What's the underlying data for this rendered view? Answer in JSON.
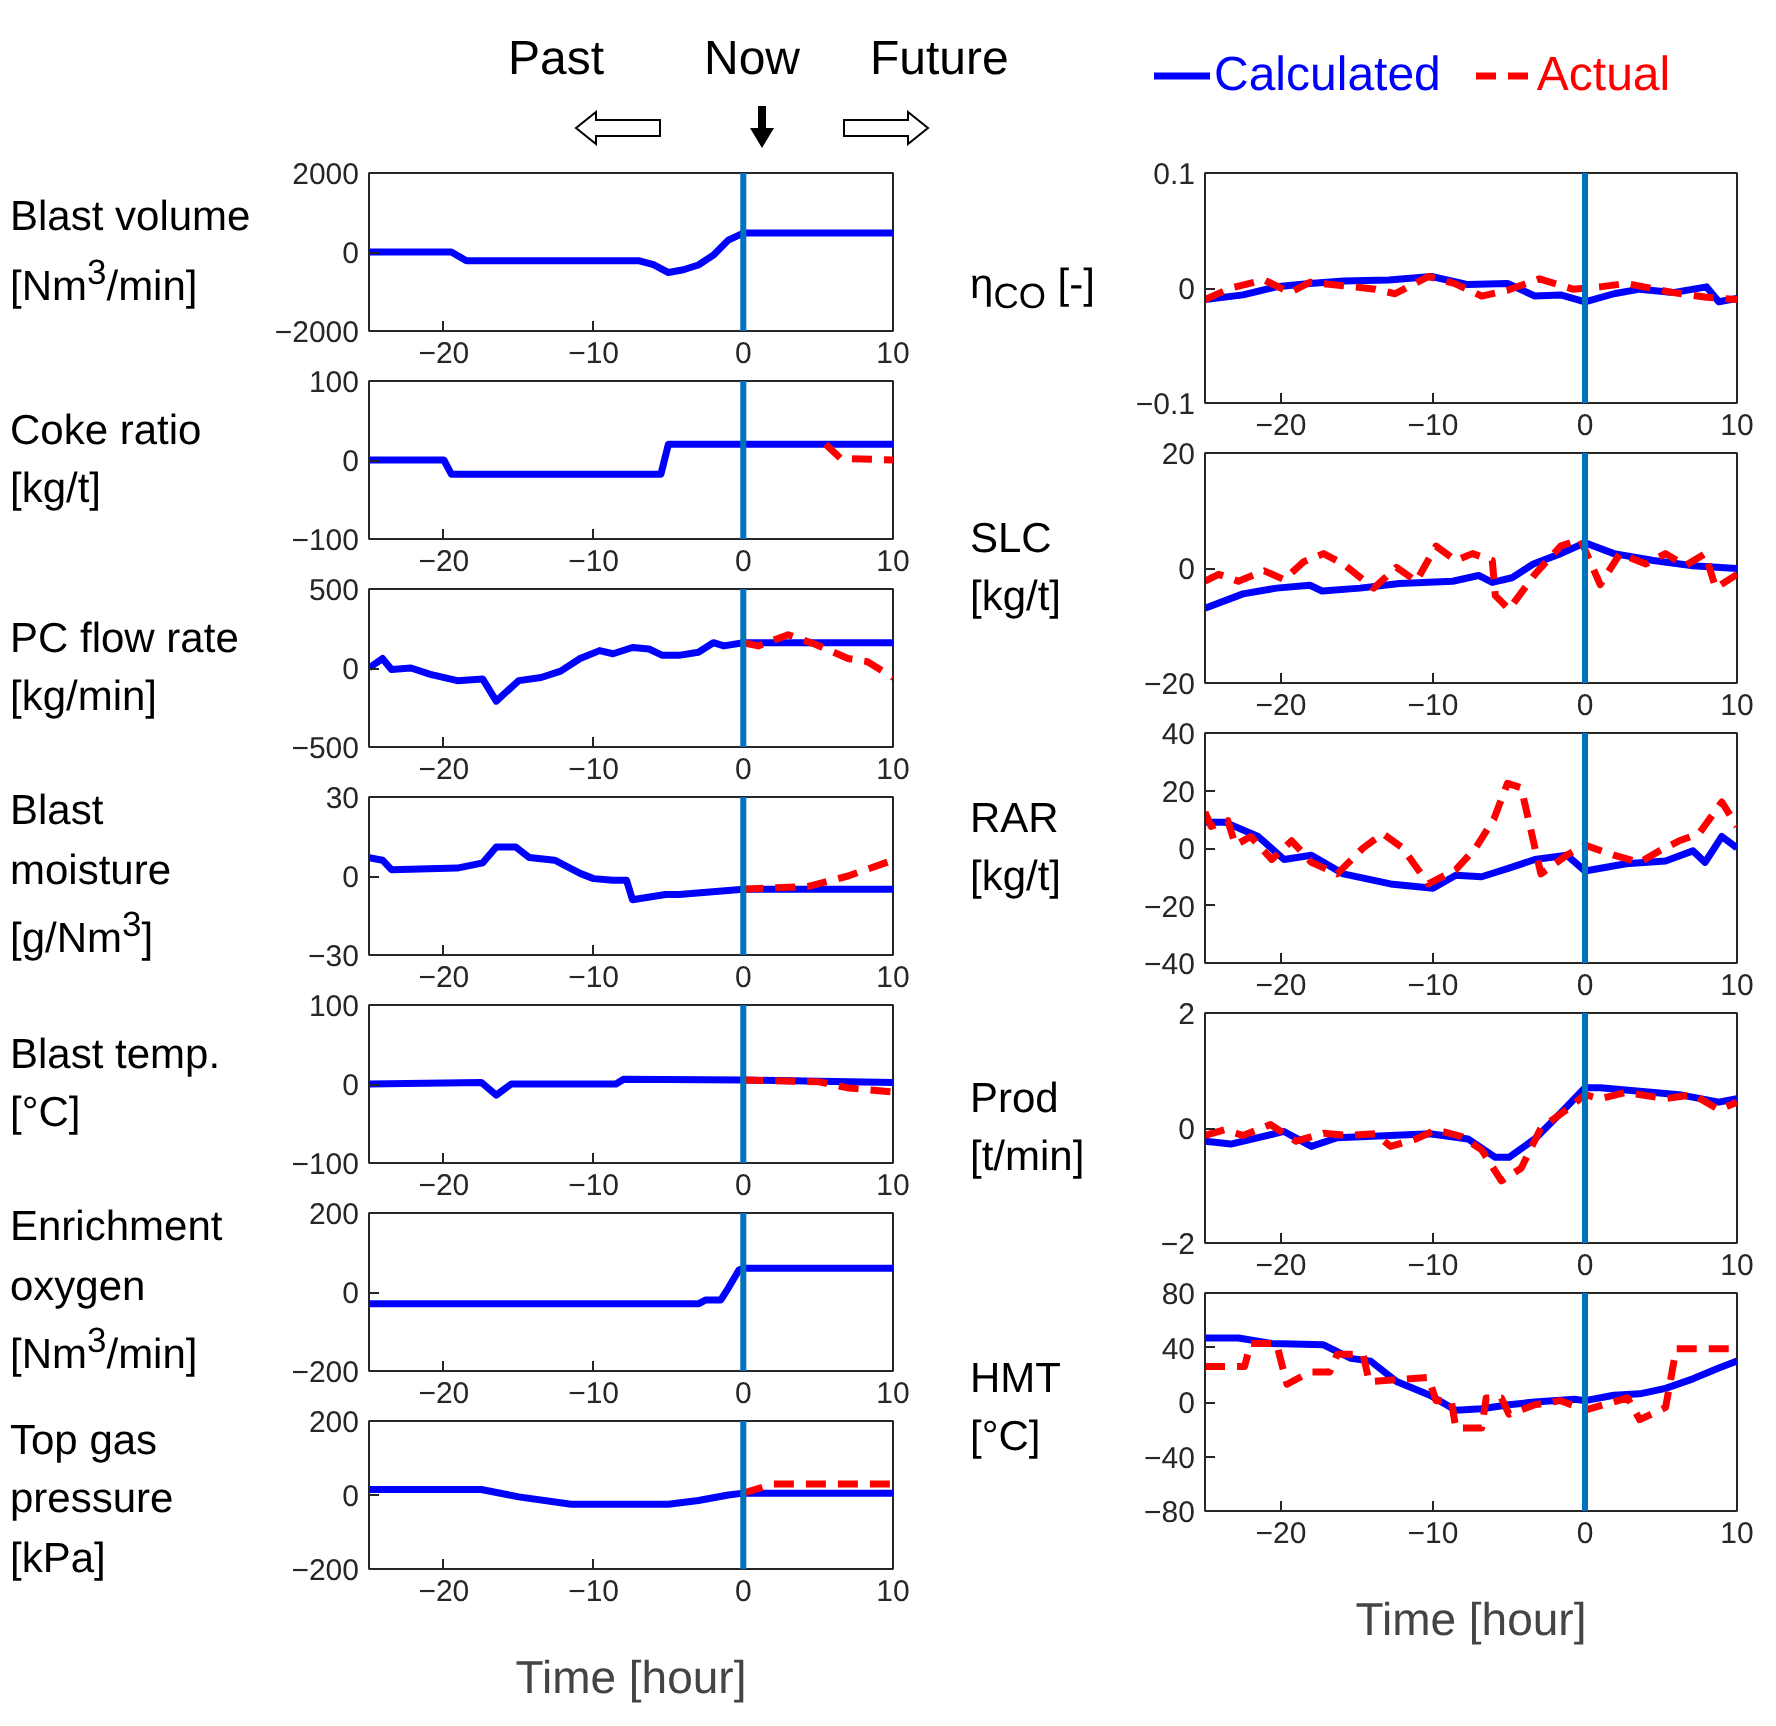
{
  "chart_data": [
    {
      "type": "line",
      "ylabel": "Blast volume [Nm$^{3}$/min]",
      "annotations": [
        "Past",
        "Now",
        "Future"
      ],
      "xlim": [
        -25,
        10
      ],
      "xticks": [
        -20,
        -10,
        0,
        10
      ],
      "ylim": [
        -2000,
        2000
      ],
      "yticks": [
        -2000,
        0,
        2000
      ],
      "ref_lines": [
        {
          "axis": "x",
          "value": 0,
          "color": "#0072bd"
        }
      ],
      "series": [
        {
          "color": "#0000ff",
          "line_style": "solid",
          "x": [
            -25,
            -19.5,
            -18.5,
            -7,
            -6,
            -5,
            -4,
            -3,
            -2,
            -1,
            0,
            10
          ],
          "values": [
            0,
            0,
            -220,
            -220,
            -320,
            -520,
            -450,
            -330,
            -80,
            300,
            480,
            480
          ]
        }
      ]
    },
    {
      "type": "line",
      "ylabel": "Coke ratio [kg/t]",
      "xlim": [
        -25,
        10
      ],
      "xticks": [
        -20,
        -10,
        0,
        10
      ],
      "ylim": [
        -100,
        100
      ],
      "yticks": [
        -100,
        0,
        100
      ],
      "ref_lines": [
        {
          "axis": "x",
          "value": 0,
          "color": "#0072bd"
        }
      ],
      "series": [
        {
          "color": "#0000ff",
          "line_style": "solid",
          "x": [
            -25,
            -20,
            -19.5,
            -5.5,
            -5,
            10
          ],
          "values": [
            0,
            0,
            -18,
            -18,
            20,
            20
          ]
        },
        {
          "color": "#ff0000",
          "line_style": "dashed",
          "x": [
            5.5,
            6.5,
            10
          ],
          "values": [
            20,
            2,
            0
          ]
        }
      ]
    },
    {
      "type": "line",
      "ylabel": "PC flow rate [kg/min]",
      "xlim": [
        -25,
        10
      ],
      "xticks": [
        -20,
        -10,
        0,
        10
      ],
      "ylim": [
        -500,
        500
      ],
      "yticks": [
        -500,
        0,
        500
      ],
      "ref_lines": [
        {
          "axis": "x",
          "value": 0,
          "color": "#0072bd"
        }
      ],
      "series": [
        {
          "color": "#0000ff",
          "line_style": "solid",
          "x": [
            -25,
            -24.1,
            -23.5,
            -22.2,
            -20.9,
            -19.1,
            -17.4,
            -16.5,
            -15,
            -13.5,
            -12.2,
            -10.9,
            -9.6,
            -8.7,
            -7.4,
            -6.3,
            -5.4,
            -4.3,
            -3,
            -2,
            -1.3,
            0,
            10
          ],
          "values": [
            0,
            60,
            -10,
            0,
            -40,
            -80,
            -70,
            -210,
            -80,
            -60,
            -20,
            60,
            110,
            90,
            130,
            120,
            80,
            80,
            100,
            160,
            140,
            160,
            160
          ]
        },
        {
          "color": "#ff0000",
          "line_style": "dashed",
          "x": [
            0,
            1,
            3,
            4.8,
            7,
            8.3,
            10
          ],
          "values": [
            160,
            140,
            210,
            150,
            60,
            40,
            -60
          ]
        }
      ]
    },
    {
      "type": "line",
      "ylabel": "Blast moisture [g/Nm$^{3}$]",
      "xlim": [
        -25,
        10
      ],
      "xticks": [
        -20,
        -10,
        0,
        10
      ],
      "ylim": [
        -30,
        30
      ],
      "yticks": [
        -30,
        0,
        30
      ],
      "ref_lines": [
        {
          "axis": "x",
          "value": 0,
          "color": "#0072bd"
        }
      ],
      "series": [
        {
          "color": "#0000ff",
          "line_style": "solid",
          "x": [
            -25,
            -24.1,
            -23.5,
            -19.1,
            -17.4,
            -16.5,
            -15.2,
            -14.3,
            -12.6,
            -10.9,
            -10,
            -8.7,
            -7.8,
            -7.4,
            -5.2,
            -4.3,
            0,
            10
          ],
          "values": [
            7,
            6,
            2.4,
            3,
            5,
            11,
            11,
            7,
            6,
            1,
            -1,
            -1.6,
            -1.6,
            -9,
            -7,
            -7,
            -5,
            -5
          ]
        },
        {
          "color": "#ff0000",
          "line_style": "dashed",
          "x": [
            0,
            4.3,
            7,
            10
          ],
          "values": [
            -5,
            -4,
            0,
            6
          ]
        }
      ]
    },
    {
      "type": "line",
      "ylabel": "Blast temp. [°C]",
      "xlim": [
        -25,
        10
      ],
      "xticks": [
        -20,
        -10,
        0,
        10
      ],
      "ylim": [
        -100,
        100
      ],
      "yticks": [
        -100,
        0,
        100
      ],
      "ref_lines": [
        {
          "axis": "x",
          "value": 0,
          "color": "#0072bd"
        }
      ],
      "series": [
        {
          "color": "#0000ff",
          "line_style": "solid",
          "x": [
            -25,
            -17.5,
            -16.5,
            -15.5,
            -8.5,
            -8,
            0,
            10
          ],
          "values": [
            0,
            2,
            -14,
            0,
            0,
            6,
            5,
            2
          ]
        },
        {
          "color": "#ff0000",
          "line_style": "dashed",
          "x": [
            0,
            5,
            7,
            10
          ],
          "values": [
            5,
            3,
            -5,
            -10
          ]
        }
      ]
    },
    {
      "type": "line",
      "ylabel": "Enrichment oxygen [Nm$^{3}$/min]",
      "xlim": [
        -25,
        10
      ],
      "xticks": [
        -20,
        -10,
        0,
        10
      ],
      "ylim": [
        -200,
        200
      ],
      "yticks": [
        -200,
        0,
        200
      ],
      "ref_lines": [
        {
          "axis": "x",
          "value": 0,
          "color": "#0072bd"
        }
      ],
      "series": [
        {
          "color": "#0000ff",
          "line_style": "solid",
          "x": [
            -25,
            -3,
            -2.5,
            -1.5,
            -1,
            -0.3,
            0,
            10
          ],
          "values": [
            -30,
            -30,
            -20,
            -20,
            10,
            55,
            60,
            60
          ]
        }
      ]
    },
    {
      "type": "line",
      "ylabel": "Top gas pressure [kPa]",
      "xlabel": "Time [hour]",
      "xlim": [
        -25,
        10
      ],
      "xticks": [
        -20,
        -10,
        0,
        10
      ],
      "ylim": [
        -200,
        200
      ],
      "yticks": [
        -200,
        0,
        200
      ],
      "ref_lines": [
        {
          "axis": "x",
          "value": 0,
          "color": "#0072bd"
        }
      ],
      "series": [
        {
          "color": "#0000ff",
          "line_style": "solid",
          "x": [
            -25,
            -17.5,
            -15,
            -11.5,
            -5,
            -3,
            -1,
            0,
            10
          ],
          "values": [
            15,
            15,
            -5,
            -25,
            -25,
            -15,
            0,
            5,
            5
          ]
        },
        {
          "color": "#ff0000",
          "line_style": "dashed",
          "x": [
            0,
            2,
            10
          ],
          "values": [
            5,
            30,
            30
          ]
        }
      ]
    },
    {
      "type": "line",
      "ylabel": "η$_{CO}$ [-]",
      "legend": "top left",
      "xlim": [
        -25,
        10
      ],
      "xticks": [
        -20,
        -10,
        0,
        10
      ],
      "ylim": [
        -0.1,
        0.1
      ],
      "yticks": [
        -0.1,
        0,
        0.1
      ],
      "ref_lines": [
        {
          "axis": "x",
          "value": 0,
          "color": "#0072bd"
        }
      ],
      "series": [
        {
          "name": "Calculated",
          "color": "#0000ff",
          "line_style": "solid",
          "x": [
            -25,
            -22.5,
            -20.3,
            -18.1,
            -15.9,
            -12.9,
            -10.1,
            -7.7,
            -5.1,
            -3.3,
            -1.6,
            0,
            1.9,
            3.6,
            5.8,
            8,
            8.8,
            10
          ],
          "values": [
            -0.01,
            -0.006,
            0.001,
            0.004,
            0.006,
            0.007,
            0.01,
            0.003,
            0.004,
            -0.007,
            -0.006,
            -0.012,
            -0.005,
            -0.001,
            -0.004,
            0.001,
            -0.012,
            -0.009
          ]
        },
        {
          "name": "Actual",
          "color": "#ff0000",
          "line_style": "dashed",
          "x": [
            -25,
            -23.3,
            -21.1,
            -19.4,
            -18.1,
            -15.9,
            -13.8,
            -12.5,
            -10.3,
            -8.6,
            -6.8,
            -5.1,
            -3,
            -0.8,
            1,
            2.7,
            5.8,
            8,
            10
          ],
          "values": [
            -0.01,
            0,
            0.007,
            -0.004,
            0.005,
            0.002,
            -0.001,
            -0.005,
            0.01,
            0.004,
            -0.007,
            -0.002,
            0.008,
            -0.001,
            0.001,
            0.004,
            -0.004,
            -0.008,
            -0.01
          ]
        }
      ]
    },
    {
      "type": "line",
      "ylabel": "SLC [kg/t]",
      "xlim": [
        -25,
        10
      ],
      "xticks": [
        -20,
        -10,
        0,
        10
      ],
      "ylim": [
        -20,
        20
      ],
      "yticks": [
        -20,
        0,
        20
      ],
      "ref_lines": [
        {
          "axis": "x",
          "value": 0,
          "color": "#0072bd"
        }
      ],
      "series": [
        {
          "color": "#0000ff",
          "line_style": "solid",
          "x": [
            -25,
            -22.5,
            -20.3,
            -18.1,
            -17.3,
            -14.8,
            -12.2,
            -8.7,
            -7,
            -6.1,
            -4.8,
            -3.4,
            -1.6,
            0,
            1.9,
            4.5,
            7.1,
            10
          ],
          "values": [
            -7,
            -4.5,
            -3.5,
            -3,
            -4,
            -3.5,
            -2.7,
            -2.3,
            -1.3,
            -2.5,
            -1.7,
            0.7,
            2.5,
            4.4,
            2.5,
            1.3,
            0.4,
            -0.1
          ]
        },
        {
          "color": "#ff0000",
          "line_style": "dashed",
          "x": [
            -25,
            -24.1,
            -22.8,
            -21.1,
            -19.8,
            -18.5,
            -17.2,
            -15.9,
            -13.9,
            -12.4,
            -11.1,
            -9.8,
            -8.5,
            -7.4,
            -6.1,
            -5.9,
            -5,
            -3.3,
            -1.6,
            -0.3,
            1,
            2.3,
            4,
            5.3,
            6.6,
            7.9,
            8.6,
            10
          ],
          "values": [
            -2.3,
            -1.1,
            -2.3,
            -0.5,
            -2,
            1.1,
            2.5,
            0.7,
            -3.5,
            0.1,
            -2.3,
            3.8,
            1.3,
            2.5,
            1.3,
            -4.8,
            -7.2,
            -1.1,
            3.8,
            5,
            -2.9,
            2.5,
            0.7,
            2.5,
            0.4,
            2.5,
            -3.5,
            -1.1
          ]
        }
      ]
    },
    {
      "type": "line",
      "ylabel": "RAR [kg/t]",
      "xlim": [
        -25,
        10
      ],
      "xticks": [
        -20,
        -10,
        0,
        10
      ],
      "ylim": [
        -40,
        40
      ],
      "yticks": [
        -40,
        -20,
        0,
        20,
        40
      ],
      "ref_lines": [
        {
          "axis": "x",
          "value": 0,
          "color": "#0072bd"
        }
      ],
      "series": [
        {
          "color": "#0000ff",
          "line_style": "solid",
          "x": [
            -25,
            -23.7,
            -21.5,
            -19.8,
            -18,
            -15.9,
            -12.8,
            -10,
            -8.5,
            -6.8,
            -5,
            -3.3,
            -1.2,
            0,
            2.7,
            5.3,
            7.1,
            7.9,
            9,
            10
          ],
          "values": [
            9,
            9,
            4,
            -4,
            -2.5,
            -9,
            -12.5,
            -14,
            -9.5,
            -10,
            -7,
            -4,
            -2.5,
            -8,
            -5.5,
            -4.5,
            -1,
            -5,
            4,
            0
          ]
        },
        {
          "color": "#ff0000",
          "line_style": "dashed",
          "x": [
            -25,
            -24.6,
            -23.5,
            -23,
            -22,
            -20.6,
            -19.3,
            -18,
            -16.3,
            -14.6,
            -13.3,
            -12,
            -10.3,
            -8.5,
            -7.2,
            -6,
            -5.1,
            -4.2,
            -2.9,
            -1.2,
            0,
            1.9,
            3.6,
            4.9,
            6.2,
            7.5,
            9,
            10
          ],
          "values": [
            12.5,
            7.5,
            9.5,
            1,
            4,
            -4,
            2.5,
            -5,
            -9,
            0,
            5,
            0,
            -12.5,
            -7.5,
            0,
            10,
            22.5,
            21,
            -9,
            -2.5,
            1,
            -2.5,
            -5,
            -1,
            2.5,
            5,
            16,
            7.5
          ]
        }
      ]
    },
    {
      "type": "line",
      "ylabel": "Prod [t/min]",
      "xlim": [
        -25,
        10
      ],
      "xticks": [
        -20,
        -10,
        0,
        10
      ],
      "ylim": [
        -2,
        2
      ],
      "yticks": [
        -2,
        0,
        2
      ],
      "ref_lines": [
        {
          "axis": "x",
          "value": 0,
          "color": "#0072bd"
        }
      ],
      "series": [
        {
          "color": "#0000ff",
          "line_style": "solid",
          "x": [
            -25,
            -23.3,
            -19.8,
            -18,
            -16.3,
            -12.8,
            -10.2,
            -7.7,
            -5.9,
            -5,
            -3.3,
            -1.6,
            0,
            1,
            3.6,
            6.2,
            8.8,
            10
          ],
          "values": [
            -0.23,
            -0.28,
            -0.06,
            -0.32,
            -0.17,
            -0.13,
            -0.1,
            -0.19,
            -0.51,
            -0.51,
            -0.19,
            0.26,
            0.7,
            0.7,
            0.64,
            0.58,
            0.45,
            0.51
          ]
        },
        {
          "color": "#ff0000",
          "line_style": "dashed",
          "x": [
            -25,
            -23.7,
            -22.5,
            -20.7,
            -19,
            -17.2,
            -15.5,
            -13.8,
            -12.8,
            -11.1,
            -9.8,
            -8.1,
            -6.8,
            -5.5,
            -4.2,
            -2.9,
            -1.2,
            0,
            1,
            2.7,
            5.3,
            7.1,
            8.8,
            10
          ],
          "values": [
            -0.13,
            -0.03,
            -0.13,
            0.06,
            -0.23,
            -0.09,
            -0.13,
            -0.1,
            -0.32,
            -0.19,
            -0.03,
            -0.15,
            -0.38,
            -0.92,
            -0.7,
            0,
            0.32,
            0.58,
            0.51,
            0.62,
            0.51,
            0.58,
            0.32,
            0.45
          ]
        }
      ]
    },
    {
      "type": "line",
      "ylabel": "HMT [°C]",
      "xlabel": "Time [hour]",
      "xlim": [
        -25,
        10
      ],
      "xticks": [
        -20,
        -10,
        0,
        10
      ],
      "ylim": [
        -80,
        80
      ],
      "yticks": [
        -80,
        -40,
        0,
        40,
        80
      ],
      "ref_lines": [
        {
          "axis": "x",
          "value": 0,
          "color": "#0072bd"
        }
      ],
      "series": [
        {
          "color": "#0000ff",
          "line_style": "solid",
          "x": [
            -25,
            -22.8,
            -20.6,
            -17.2,
            -15.4,
            -14.1,
            -12.4,
            -10.2,
            -8.5,
            -6.8,
            -5,
            -3.3,
            -0.7,
            0,
            1.9,
            3.6,
            5.3,
            7.1,
            8.8,
            10
          ],
          "values": [
            47,
            47,
            43,
            42,
            32,
            30,
            15,
            5,
            -6,
            -5,
            -2,
            0,
            2,
            1,
            5,
            6,
            10,
            17,
            25,
            30
          ]
        },
        {
          "color": "#ff0000",
          "line_style": "dashed",
          "x": [
            -25,
            -22.4,
            -22,
            -20.3,
            -19.6,
            -18.1,
            -16.8,
            -16.3,
            -14.6,
            -14.2,
            -10.3,
            -9.8,
            -8.8,
            -8.5,
            -6.8,
            -6.5,
            -5.5,
            -5,
            -3.3,
            -1.6,
            0,
            2.8,
            3.6,
            5.3,
            6,
            10
          ],
          "values": [
            26,
            26,
            43,
            43,
            13,
            22,
            22,
            35,
            35,
            15,
            18,
            1,
            1,
            -19,
            -19,
            3,
            3,
            -9,
            -2,
            1,
            -6,
            3,
            -13,
            -4,
            39,
            39
          ]
        }
      ]
    }
  ]
}
